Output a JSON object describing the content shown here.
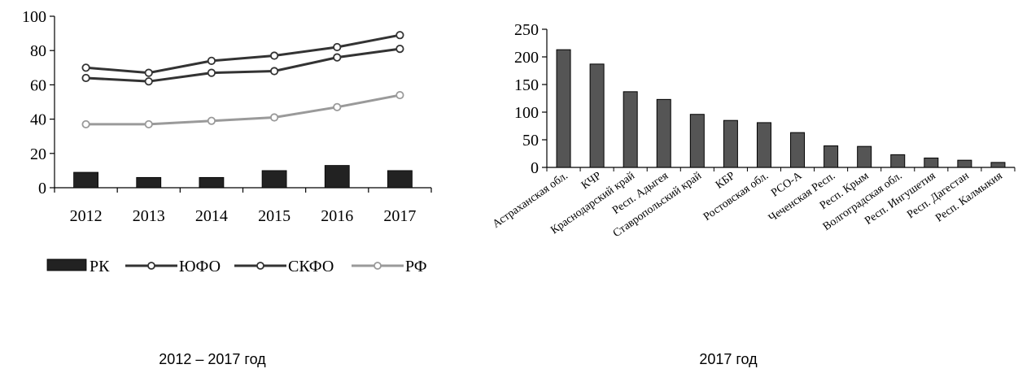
{
  "captions": {
    "left": "2012 – 2017 год",
    "right": "2017 год"
  },
  "chart_data": [
    {
      "type": "bar+line",
      "title": "",
      "xlabel": "",
      "ylabel": "",
      "ylim": [
        0,
        100
      ],
      "yticks": [
        0,
        20,
        40,
        60,
        80,
        100
      ],
      "categories": [
        "2012",
        "2013",
        "2014",
        "2015",
        "2016",
        "2017"
      ],
      "series": [
        {
          "name": "РК",
          "type": "bar",
          "color": "#222222",
          "values": [
            9,
            6,
            6,
            10,
            13,
            10
          ]
        },
        {
          "name": "ЮФО",
          "type": "line",
          "color": "#333333",
          "values": [
            64,
            62,
            67,
            68,
            76,
            81
          ]
        },
        {
          "name": "СКФО",
          "type": "line",
          "color": "#333333",
          "values": [
            70,
            67,
            74,
            77,
            82,
            89
          ]
        },
        {
          "name": "РФ",
          "type": "line",
          "color": "#9a9a9a",
          "values": [
            37,
            37,
            39,
            41,
            47,
            54
          ]
        }
      ],
      "legend": "bottom"
    },
    {
      "type": "bar",
      "title": "",
      "xlabel": "",
      "ylabel": "",
      "ylim": [
        0,
        250
      ],
      "yticks": [
        0,
        50,
        100,
        150,
        200,
        250
      ],
      "categories": [
        "Астраханская обл.",
        "КЧР",
        "Краснодарский край",
        "Респ. Адыгея",
        "Ставропольский край",
        "КБР",
        "Ростовская обл.",
        "РСО-А",
        "Чеченская Респ.",
        "Респ. Крым",
        "Волгоградская обл.",
        "Респ. Ингушетия",
        "Респ. Дагестан",
        "Респ. Калмыкия"
      ],
      "values": [
        213,
        187,
        137,
        123,
        96,
        85,
        81,
        63,
        39,
        38,
        23,
        17,
        13,
        9
      ],
      "color": "#555555"
    }
  ]
}
